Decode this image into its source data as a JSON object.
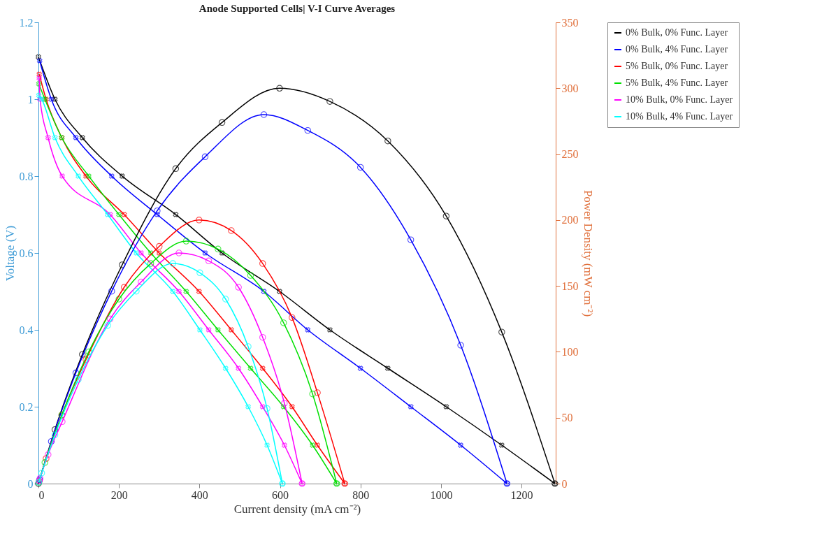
{
  "chart_data": {
    "type": "line",
    "title": "Anode Supported Cells| V-I Curve Averages",
    "xlabel": "Current density (mA cm⁻²)",
    "ylabel": "Voltage (V)",
    "y2label": "Power Density (mW cm⁻²)",
    "xlim": [
      0,
      1285
    ],
    "xticks": [
      0,
      200,
      400,
      600,
      800,
      1000,
      1200
    ],
    "ylim": [
      0,
      1.2
    ],
    "yticks": [
      0,
      0.2,
      0.4,
      0.6,
      0.8,
      1,
      1.2
    ],
    "y2lim": [
      0,
      350
    ],
    "y2ticks": [
      0,
      50,
      100,
      150,
      200,
      250,
      300,
      350
    ],
    "grid": false,
    "legend": "right",
    "series": [
      {
        "name": "0% Bulk, 0% Func. Layer",
        "color": "#000000",
        "marker": "cross",
        "x": [
          0,
          41,
          109,
          208,
          341,
          456,
          599,
          724,
          868,
          1013,
          1151,
          1283
        ],
        "values": [
          1.11,
          1,
          0.9,
          0.8,
          0.7,
          0.6,
          0.5,
          0.4,
          0.3,
          0.2,
          0.1,
          0
        ]
      },
      {
        "name": "0% Bulk, 4% Func. Layer",
        "color": "#0000ff",
        "marker": "cross",
        "x": [
          3,
          32,
          93,
          182,
          295,
          414,
          560,
          669,
          800,
          925,
          1049,
          1164
        ],
        "values": [
          1.1,
          1,
          0.9,
          0.8,
          0.7,
          0.6,
          0.5,
          0.4,
          0.3,
          0.2,
          0.1,
          0
        ]
      },
      {
        "name": "5% Bulk, 0% Func. Layer",
        "color": "#ff0000",
        "marker": "cross",
        "x": [
          2,
          19,
          58,
          118,
          213,
          300,
          399,
          479,
          557,
          630,
          693,
          761
        ],
        "values": [
          1.065,
          1,
          0.9,
          0.8,
          0.7,
          0.6,
          0.5,
          0.4,
          0.3,
          0.2,
          0.1,
          0
        ]
      },
      {
        "name": "5% Bulk, 4% Func. Layer",
        "color": "#00e000",
        "marker": "cross",
        "x": [
          1,
          16,
          58,
          125,
          200,
          279,
          367,
          446,
          527,
          609,
          681,
          741
        ],
        "values": [
          1.04,
          1,
          0.9,
          0.8,
          0.7,
          0.6,
          0.5,
          0.4,
          0.3,
          0.2,
          0.1,
          0
        ]
      },
      {
        "name": "10% Bulk, 0% Func. Layer",
        "color": "#ff00ff",
        "marker": "cross",
        "x": [
          2,
          4,
          24,
          59,
          178,
          255,
          349,
          423,
          497,
          557,
          611,
          655
        ],
        "values": [
          1.055,
          1,
          0.9,
          0.8,
          0.7,
          0.6,
          0.5,
          0.4,
          0.3,
          0.2,
          0.1,
          0
        ]
      },
      {
        "name": "10% Bulk, 4% Func. Layer",
        "color": "#00ffff",
        "marker": "cross",
        "x": [
          1,
          8,
          41,
          99,
          172,
          243,
          334,
          401,
          465,
          521,
          568,
          606
        ],
        "values": [
          1.01,
          1,
          0.9,
          0.8,
          0.7,
          0.6,
          0.5,
          0.4,
          0.3,
          0.2,
          0.1,
          0
        ]
      },
      {
        "color": "#000000",
        "marker": "circle",
        "axis": "y2",
        "x": [
          0,
          41,
          109,
          208,
          341,
          456,
          599,
          724,
          868,
          1013,
          1151,
          1283
        ],
        "values": [
          0,
          41,
          98,
          166,
          239,
          274,
          300,
          290,
          260,
          203,
          115,
          0
        ]
      },
      {
        "color": "#0000ff",
        "marker": "circle",
        "axis": "y2",
        "x": [
          3,
          32,
          93,
          182,
          295,
          414,
          560,
          669,
          800,
          925,
          1049,
          1164
        ],
        "values": [
          3,
          32,
          84,
          146,
          207,
          248,
          280,
          268,
          240,
          185,
          105,
          0
        ]
      },
      {
        "color": "#ff0000",
        "marker": "circle",
        "axis": "y2",
        "x": [
          2,
          19,
          58,
          118,
          213,
          300,
          399,
          479,
          557,
          630,
          693,
          761
        ],
        "values": [
          2,
          19,
          52,
          94,
          149,
          180,
          200,
          192,
          167,
          126,
          69,
          0
        ]
      },
      {
        "color": "#00e000",
        "marker": "circle",
        "axis": "y2",
        "x": [
          1,
          16,
          58,
          125,
          200,
          279,
          367,
          446,
          527,
          609,
          681,
          741
        ],
        "values": [
          1,
          16,
          52,
          100,
          140,
          167,
          184,
          178,
          158,
          122,
          68,
          0
        ]
      },
      {
        "color": "#ff00ff",
        "marker": "circle",
        "axis": "y2",
        "x": [
          2,
          4,
          24,
          59,
          178,
          255,
          349,
          423,
          497,
          557,
          611,
          655
        ],
        "values": [
          2,
          4,
          22,
          47,
          125,
          153,
          175,
          169,
          149,
          111,
          61,
          0
        ]
      },
      {
        "color": "#00ffff",
        "marker": "circle",
        "axis": "y2",
        "x": [
          1,
          8,
          41,
          99,
          172,
          243,
          334,
          401,
          465,
          521,
          568,
          606
        ],
        "values": [
          1,
          8,
          37,
          79,
          120,
          146,
          167,
          160,
          140,
          104,
          57,
          0
        ]
      }
    ]
  }
}
